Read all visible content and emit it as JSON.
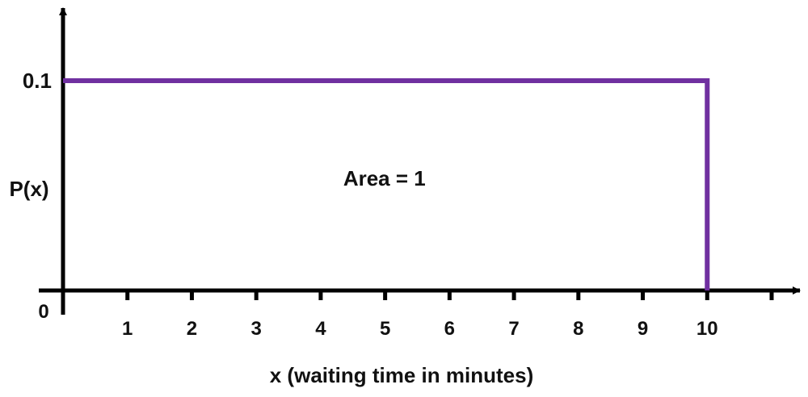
{
  "chart_data": {
    "type": "line",
    "title": "",
    "xlabel": "x (waiting time in minutes)",
    "ylabel": "P(x)",
    "origin_label": "0",
    "xlim": [
      0,
      11
    ],
    "ylim": [
      0,
      0.13
    ],
    "x_ticks": [
      1,
      2,
      3,
      4,
      5,
      6,
      7,
      8,
      9,
      10,
      11
    ],
    "x_tick_labels": [
      "1",
      "2",
      "3",
      "4",
      "5",
      "6",
      "7",
      "8",
      "9",
      "10",
      ""
    ],
    "y_ticks": [
      0.1
    ],
    "y_tick_labels": [
      "0.1"
    ],
    "grid": false,
    "series": [
      {
        "x": [
          0,
          10,
          10
        ],
        "y": [
          0.1,
          0.1,
          0
        ],
        "color": "#7030a0"
      }
    ],
    "annotations": [
      {
        "text": "Area = 1",
        "x": 4.35,
        "y": 0.05
      }
    ],
    "axis_color": "#000000"
  }
}
